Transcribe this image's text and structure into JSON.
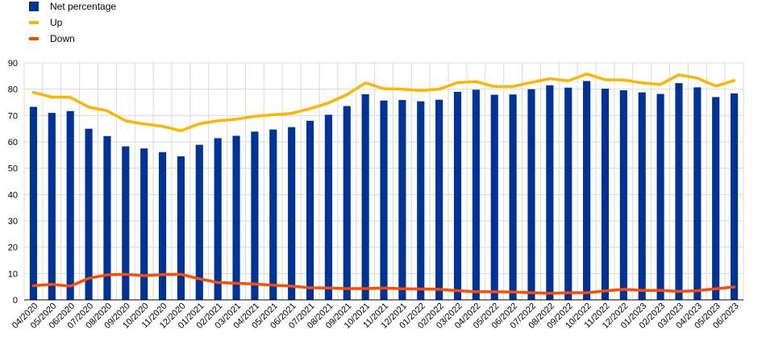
{
  "chart_data": {
    "type": "bar",
    "categories": [
      "04/2020",
      "05/2020",
      "06/2020",
      "07/2020",
      "08/2020",
      "09/2020",
      "10/2020",
      "11/2020",
      "12/2020",
      "01/2021",
      "02/2021",
      "03/2021",
      "04/2021",
      "05/2021",
      "06/2021",
      "07/2021",
      "08/2021",
      "09/2021",
      "10/2021",
      "11/2021",
      "12/2021",
      "01/2022",
      "02/2022",
      "03/2022",
      "04/2022",
      "05/2022",
      "06/2022",
      "07/2022",
      "08/2022",
      "09/2022",
      "10/2022",
      "11/2022",
      "12/2022",
      "01/2023",
      "02/2023",
      "03/2023",
      "04/2023",
      "05/2023",
      "06/2023"
    ],
    "series": [
      {
        "name": "Net percentage",
        "type": "bar",
        "color": "#003399",
        "values": [
          73.3,
          71.0,
          71.7,
          65.0,
          62.2,
          58.3,
          57.5,
          56.1,
          54.5,
          58.9,
          61.4,
          62.3,
          63.9,
          64.7,
          65.6,
          68.0,
          70.3,
          73.6,
          78.1,
          75.7,
          75.9,
          75.4,
          76.0,
          79.0,
          79.8,
          77.9,
          78.0,
          80.0,
          81.5,
          80.6,
          83.1,
          80.2,
          79.6,
          78.8,
          78.2,
          82.3,
          80.7,
          77.0,
          78.4
        ]
      },
      {
        "name": "Up",
        "type": "line",
        "color": "#FFB400",
        "values": [
          78.8,
          77.0,
          76.9,
          73.2,
          71.8,
          68.0,
          66.8,
          65.9,
          64.2,
          66.9,
          68.0,
          68.6,
          69.7,
          70.3,
          70.8,
          72.6,
          74.8,
          77.9,
          82.4,
          80.2,
          80.0,
          79.5,
          80.0,
          82.5,
          82.9,
          81.0,
          81.0,
          82.6,
          84.0,
          83.2,
          85.8,
          83.6,
          83.5,
          82.4,
          81.8,
          85.5,
          84.2,
          81.2,
          83.3
        ]
      },
      {
        "name": "Down",
        "type": "line",
        "color": "#FF4B00",
        "values": [
          5.4,
          5.9,
          5.2,
          8.2,
          9.5,
          9.7,
          9.2,
          9.6,
          9.7,
          8.0,
          6.6,
          6.3,
          6.0,
          5.6,
          5.2,
          4.6,
          4.5,
          4.3,
          4.3,
          4.5,
          4.2,
          4.1,
          4.0,
          3.5,
          3.1,
          3.1,
          3.0,
          2.7,
          2.5,
          2.7,
          2.7,
          3.4,
          4.0,
          3.6,
          3.6,
          3.2,
          3.5,
          4.2,
          4.9
        ]
      }
    ],
    "yticks": [
      0,
      10,
      20,
      30,
      40,
      50,
      60,
      70,
      80,
      90
    ],
    "ylim": [
      0,
      90
    ],
    "grid": true,
    "legend_position": "top-left"
  }
}
